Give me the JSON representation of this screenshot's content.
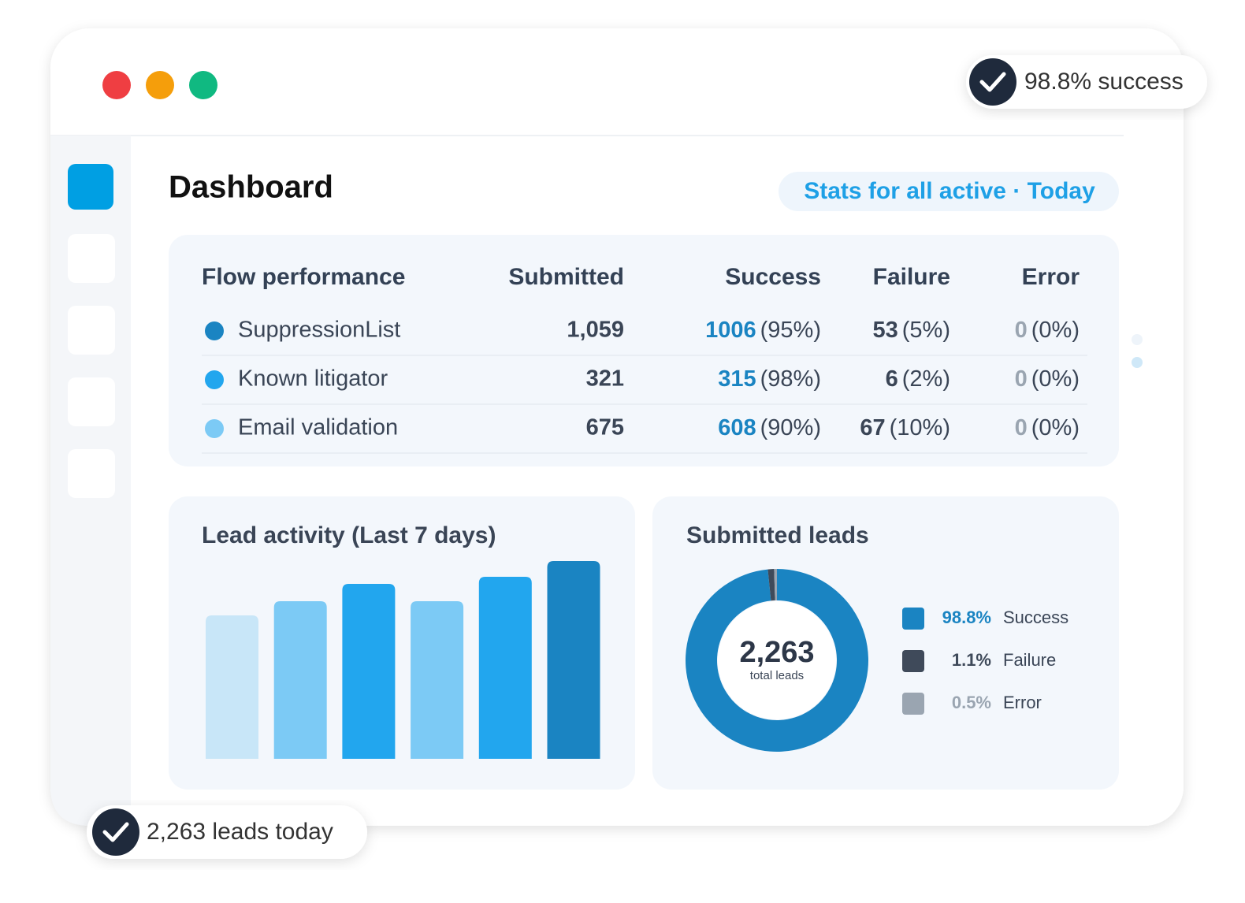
{
  "badges": [
    {
      "text": "98.8% success"
    },
    {
      "text": "2,263 leads today"
    }
  ],
  "header": {
    "title": "Dashboard",
    "filter": "Stats for all active · Today"
  },
  "table": {
    "columns": [
      "Flow performance",
      "Submitted",
      "Success",
      "Failure",
      "Error"
    ],
    "rows": [
      {
        "name": "SuppressionList",
        "color": "#1a84c2",
        "submitted": "1,059",
        "success": "1006",
        "success_pct": "(95%)",
        "failure": "53",
        "failure_pct": "(5%)",
        "error": "0",
        "error_pct": "(0%)"
      },
      {
        "name": "Known litigator",
        "color": "#22a6ee",
        "submitted": "321",
        "success": "315",
        "success_pct": "(98%)",
        "failure": "6",
        "failure_pct": "(2%)",
        "error": "0",
        "error_pct": "(0%)"
      },
      {
        "name": "Email validation",
        "color": "#7ccaf5",
        "submitted": "675",
        "success": "608",
        "success_pct": "(90%)",
        "failure": "67",
        "failure_pct": "(10%)",
        "error": "0",
        "error_pct": "(0%)"
      }
    ]
  },
  "chart_data": [
    {
      "type": "bar",
      "title": "Lead activity (Last 7 days)",
      "categories": [
        null,
        null,
        null,
        null,
        null,
        null
      ],
      "values": [
        182,
        200,
        222,
        200,
        231,
        251
      ],
      "colors": [
        "#c8e6f8",
        "#7ccaf5",
        "#22a6ee",
        "#7ccaf5",
        "#22a6ee",
        "#1a84c2"
      ]
    },
    {
      "type": "pie",
      "title": "Submitted leads",
      "total": "2,263",
      "total_label": "total leads",
      "categories": [
        "Success",
        "Failure",
        "Error"
      ],
      "values": [
        98.8,
        1.1,
        0.5
      ],
      "value_labels": [
        "98.8%",
        "1.1%",
        "0.5%"
      ],
      "colors": [
        "#1a84c2",
        "#3f4a5a",
        "#9aa5b1"
      ]
    }
  ]
}
